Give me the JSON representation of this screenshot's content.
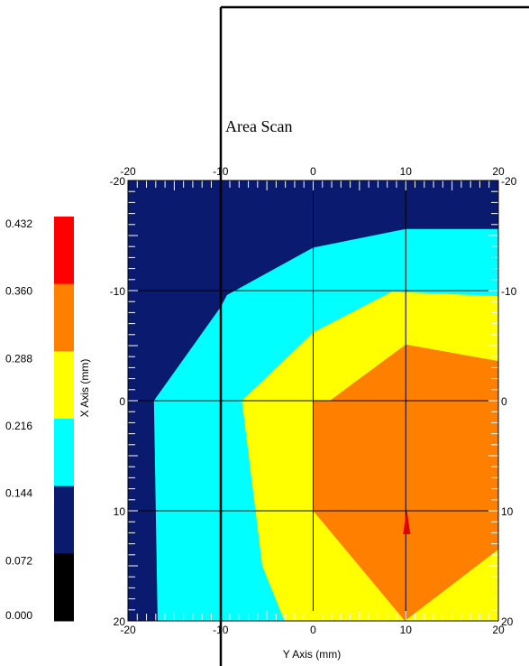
{
  "chart_data": {
    "type": "heatmap",
    "title": "Area Scan",
    "xlabel": "Y Axis (mm)",
    "ylabel": "X Axis (mm)",
    "xlim": [
      -20,
      20
    ],
    "ylim": [
      -20,
      20
    ],
    "x_ticks": [
      "-20",
      "-10",
      "0",
      "10",
      "20"
    ],
    "y_ticks": [
      "-20",
      "-10",
      "0",
      "10",
      "20"
    ],
    "grid": true,
    "legend_position": "left",
    "legend": [
      {
        "label": "0.000",
        "color": "#000000"
      },
      {
        "label": "0.072",
        "color": "#000000"
      },
      {
        "label": "0.144",
        "color": "#0a1a6e"
      },
      {
        "label": "0.216",
        "color": "#00ffff"
      },
      {
        "label": "0.288",
        "color": "#ffff00"
      },
      {
        "label": "0.360",
        "color": "#ff8000"
      },
      {
        "label": "0.432",
        "color": "#ff0000"
      }
    ],
    "contours": [
      {
        "level": "0.144-0.216",
        "color": "#00ffff",
        "points": [
          [
            20,
            -15.6
          ],
          [
            20,
            20
          ],
          [
            -16.8,
            20
          ],
          [
            -17.2,
            0
          ],
          [
            -10,
            -8.5
          ],
          [
            -9.3,
            -9.6
          ],
          [
            0,
            -13.9
          ],
          [
            10,
            -15.6
          ]
        ]
      },
      {
        "level": "0.216-0.288",
        "color": "#ffff00",
        "points": [
          [
            20,
            -9.5
          ],
          [
            20,
            20
          ],
          [
            -3.1,
            20
          ],
          [
            -5.5,
            15
          ],
          [
            -7.7,
            0
          ],
          [
            0,
            -6.2
          ],
          [
            8.5,
            -9.9
          ]
        ]
      },
      {
        "level": "0.288-0.360",
        "color": "#ff8000",
        "points": [
          [
            20,
            -3.6
          ],
          [
            20,
            13.5
          ],
          [
            9.9,
            20
          ],
          [
            0,
            10
          ],
          [
            0,
            0
          ],
          [
            1.8,
            0
          ],
          [
            10,
            -5.1
          ]
        ]
      }
    ],
    "peak_marker": {
      "x": 10.1,
      "y": 10,
      "color": "#e00000"
    }
  }
}
